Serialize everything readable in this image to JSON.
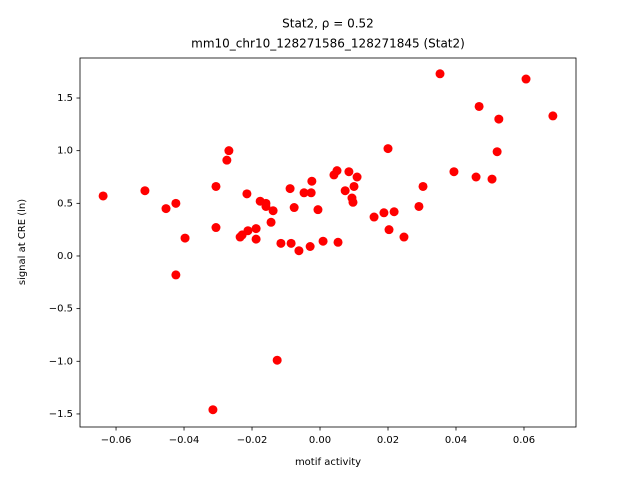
{
  "chart_data": {
    "type": "scatter",
    "title": "Stat2, ρ = 0.52",
    "subtitle": "mm10_chr10_128271586_128271845 (Stat2)",
    "x_label": "motif activity",
    "y_label": "signal at CRE (ln)",
    "color": "#ff0000",
    "xlim": [
      -0.0706,
      0.0753
    ],
    "ylim": [
      -1.624,
      1.88
    ],
    "xticks": [
      {
        "value": -0.06,
        "label": "−0.06"
      },
      {
        "value": -0.04,
        "label": "−0.04"
      },
      {
        "value": -0.02,
        "label": "−0.02"
      },
      {
        "value": 0,
        "label": "0.00"
      },
      0.02,
      0.04,
      0.06
    ],
    "yticks": [
      {
        "value": -1.5,
        "label": "−1.5"
      },
      {
        "value": -1,
        "label": "−1.0"
      },
      {
        "value": -0.5,
        "label": "−0.5"
      },
      {
        "value": 0,
        "label": "0.0"
      },
      0.5,
      {
        "value": 1,
        "label": "1.0"
      },
      1.5
    ],
    "x": [
      -0.0638,
      -0.0515,
      -0.0453,
      -0.0424,
      -0.0424,
      -0.0397,
      -0.0306,
      -0.0306,
      -0.0315,
      -0.0268,
      -0.0274,
      -0.0215,
      -0.0235,
      -0.0229,
      -0.0212,
      -0.0188,
      -0.0188,
      -0.0176,
      -0.0159,
      -0.0159,
      -0.0144,
      -0.0138,
      -0.0126,
      -0.0115,
      -0.0088,
      -0.0085,
      -0.0076,
      -0.0062,
      -0.0047,
      -0.0026,
      -0.0024,
      -0.0029,
      -0.0006,
      0.0009,
      0.0041,
      0.005,
      0.0053,
      0.0074,
      0.0085,
      0.0094,
      0.0097,
      0.01,
      0.0109,
      0.0159,
      0.0188,
      0.02,
      0.0203,
      0.0218,
      0.0247,
      0.0291,
      0.0303,
      0.0353,
      0.0394,
      0.0459,
      0.0468,
      0.0506,
      0.0521,
      0.0526,
      0.0606,
      0.0685
    ],
    "values": [
      0.57,
      0.62,
      0.45,
      0.5,
      -0.18,
      0.17,
      0.66,
      0.27,
      -1.46,
      1.0,
      0.91,
      0.59,
      0.18,
      0.2,
      0.24,
      0.26,
      0.16,
      0.52,
      0.47,
      0.5,
      0.32,
      0.43,
      -0.99,
      0.12,
      0.64,
      0.12,
      0.46,
      0.05,
      0.6,
      0.6,
      0.71,
      0.09,
      0.44,
      0.14,
      0.77,
      0.81,
      0.13,
      0.62,
      0.8,
      0.55,
      0.51,
      0.66,
      0.75,
      0.37,
      0.41,
      1.02,
      0.25,
      0.42,
      0.18,
      0.47,
      0.66,
      1.73,
      0.8,
      0.75,
      1.42,
      0.73,
      0.99,
      1.3,
      1.68,
      1.33
    ]
  }
}
